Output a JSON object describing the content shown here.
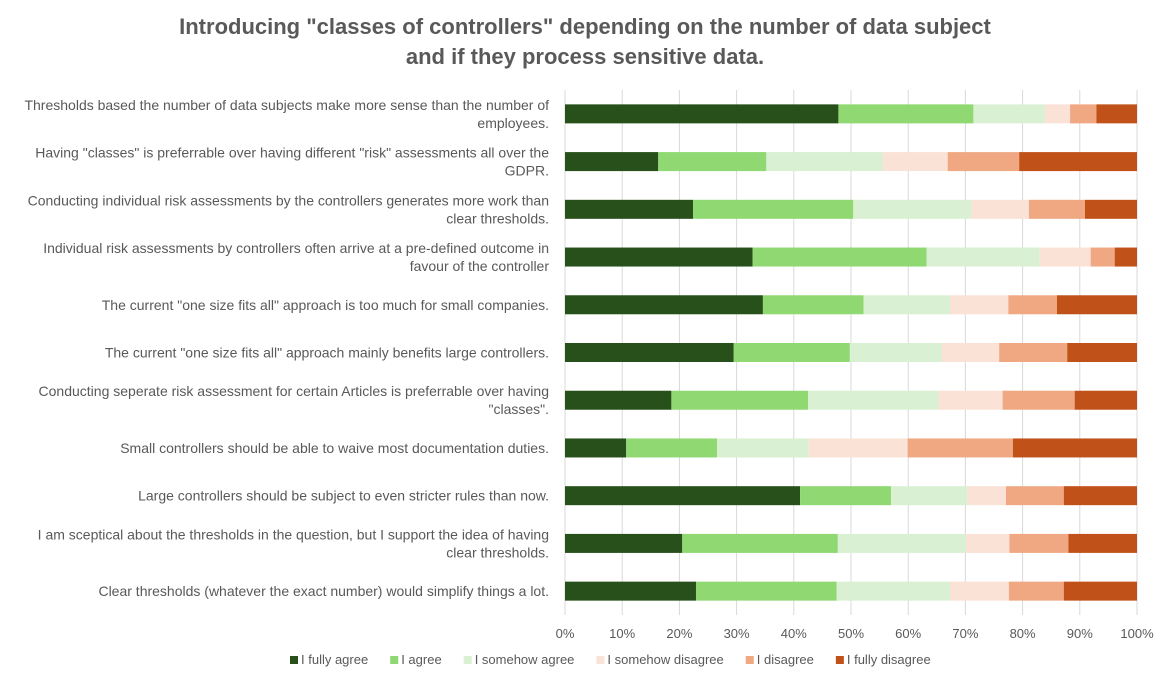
{
  "chart_data": {
    "type": "bar",
    "orientation": "horizontal",
    "stacked": "100%",
    "title_lines": [
      "Introducing \"classes of controllers\" depending on the number of data subject",
      "and if they process sensitive data."
    ],
    "categories": [
      [
        "Thresholds based the number of data subjects make more sense than the number of",
        "employees."
      ],
      [
        "Having \"classes\" is preferrable over having different \"risk\" assessments all over the",
        "GDPR."
      ],
      [
        "Conducting individual risk assessments by the controllers generates more work than",
        "clear thresholds."
      ],
      [
        "Individual risk assessments by controllers often arrive at a pre-defined outcome in",
        "favour of the controller"
      ],
      [
        "The current \"one size fits all\" approach is too much for small companies."
      ],
      [
        "The current \"one size fits all\" approach mainly benefits large controllers."
      ],
      [
        "Conducting seperate risk assessment for certain Articles is preferrable over having",
        "\"classes\"."
      ],
      [
        "Small controllers should be able to waive most documentation duties."
      ],
      [
        "Large controllers should be subject to even stricter rules than now."
      ],
      [
        "I am sceptical about the thresholds in the question, but I support the idea of having",
        "clear thresholds."
      ],
      [
        "Clear thresholds (whatever the exact number) would simplify things a lot."
      ]
    ],
    "series": [
      {
        "name": "I fully agree",
        "color": "#27501a",
        "values": [
          47.8,
          16.3,
          22.4,
          32.8,
          34.6,
          29.5,
          18.6,
          10.7,
          41.1,
          20.5,
          22.9
        ]
      },
      {
        "name": "I agree",
        "color": "#8fd872",
        "values": [
          23.6,
          18.9,
          28.0,
          30.4,
          17.6,
          20.3,
          23.9,
          15.9,
          15.9,
          27.2,
          24.6
        ]
      },
      {
        "name": "I somehow agree",
        "color": "#d9f1d2",
        "values": [
          12.5,
          20.4,
          20.7,
          19.8,
          15.1,
          16.1,
          22.8,
          16.0,
          13.4,
          22.4,
          19.8
        ]
      },
      {
        "name": "I somehow disagree",
        "color": "#fbe2d6",
        "values": [
          4.4,
          11.3,
          10.0,
          8.9,
          10.2,
          10.0,
          11.2,
          17.3,
          6.7,
          7.6,
          10.3
        ]
      },
      {
        "name": "I disagree",
        "color": "#f0a883",
        "values": [
          4.6,
          12.5,
          9.8,
          4.2,
          8.5,
          11.9,
          12.6,
          18.4,
          10.1,
          10.3,
          9.6
        ]
      },
      {
        "name": "I fully disagree",
        "color": "#c05219",
        "values": [
          7.1,
          20.6,
          9.1,
          3.9,
          14.0,
          12.2,
          10.9,
          21.7,
          12.8,
          12.0,
          12.8
        ]
      }
    ],
    "xlim": [
      0,
      100
    ],
    "x_ticks": [
      "0%",
      "10%",
      "20%",
      "30%",
      "40%",
      "50%",
      "60%",
      "70%",
      "80%",
      "90%",
      "100%"
    ],
    "grid": true,
    "legend_position": "bottom"
  }
}
